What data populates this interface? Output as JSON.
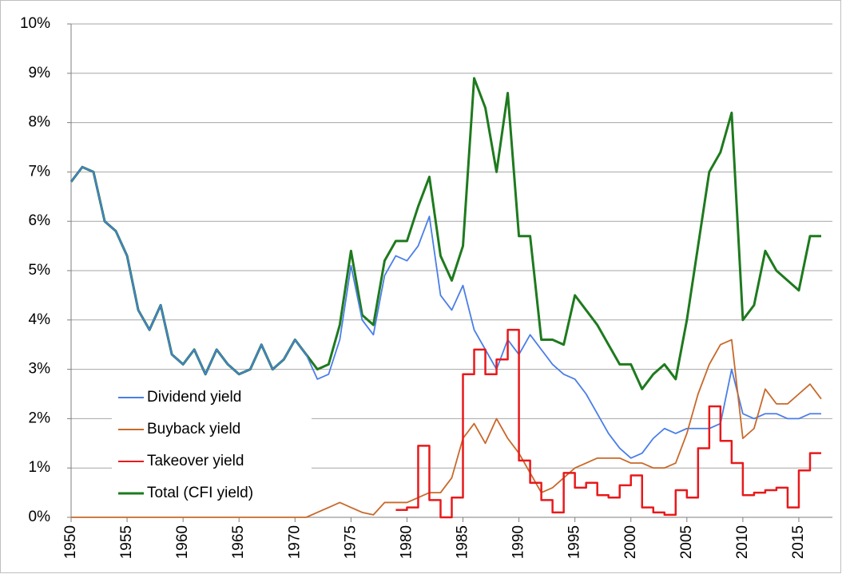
{
  "chart_data": {
    "type": "line",
    "x": [
      1950,
      1951,
      1952,
      1953,
      1954,
      1955,
      1956,
      1957,
      1958,
      1959,
      1960,
      1961,
      1962,
      1963,
      1964,
      1965,
      1966,
      1967,
      1968,
      1969,
      1970,
      1971,
      1972,
      1973,
      1974,
      1975,
      1976,
      1977,
      1978,
      1979,
      1980,
      1981,
      1982,
      1983,
      1984,
      1985,
      1986,
      1987,
      1988,
      1989,
      1990,
      1991,
      1992,
      1993,
      1994,
      1995,
      1996,
      1997,
      1998,
      1999,
      2000,
      2001,
      2002,
      2003,
      2004,
      2005,
      2006,
      2007,
      2008,
      2009,
      2010,
      2011,
      2012,
      2013,
      2014,
      2015,
      2016,
      2017
    ],
    "series": [
      {
        "name": "Dividend yield",
        "color": "#4a7ee8",
        "values": [
          6.8,
          7.1,
          7.0,
          6.0,
          5.8,
          5.3,
          4.2,
          3.8,
          4.3,
          3.3,
          3.1,
          3.4,
          2.9,
          3.4,
          3.1,
          2.9,
          3.0,
          3.5,
          3.0,
          3.2,
          3.6,
          3.3,
          2.8,
          2.9,
          3.6,
          5.1,
          4.0,
          3.7,
          4.9,
          5.3,
          5.2,
          5.5,
          6.1,
          4.5,
          4.2,
          4.7,
          3.8,
          3.4,
          3.0,
          3.6,
          3.3,
          3.7,
          3.4,
          3.1,
          2.9,
          2.8,
          2.5,
          2.1,
          1.7,
          1.4,
          1.2,
          1.3,
          1.6,
          1.8,
          1.7,
          1.8,
          1.8,
          1.8,
          1.9,
          3.0,
          2.1,
          2.0,
          2.1,
          2.1,
          2.0,
          2.0,
          2.1,
          2.1
        ]
      },
      {
        "name": "Buyback yield",
        "color": "#c8692a",
        "values": [
          0,
          0,
          0,
          0,
          0,
          0,
          0,
          0,
          0,
          0,
          0,
          0,
          0,
          0,
          0,
          0,
          0,
          0,
          0,
          0,
          0,
          0,
          0.1,
          0.2,
          0.3,
          0.2,
          0.1,
          0.05,
          0.3,
          0.3,
          0.3,
          0.4,
          0.5,
          0.5,
          0.8,
          1.6,
          1.9,
          1.5,
          2.0,
          1.6,
          1.3,
          0.9,
          0.5,
          0.6,
          0.8,
          1.0,
          1.1,
          1.2,
          1.2,
          1.2,
          1.1,
          1.1,
          1.0,
          1.0,
          1.1,
          1.7,
          2.5,
          3.1,
          3.5,
          3.6,
          1.6,
          1.8,
          2.6,
          2.3,
          2.3,
          2.5,
          2.7,
          2.4
        ]
      },
      {
        "name": "Takeover yield",
        "color": "#e8191b",
        "step": true,
        "values": [
          null,
          null,
          null,
          null,
          null,
          null,
          null,
          null,
          null,
          null,
          null,
          null,
          null,
          null,
          null,
          null,
          null,
          null,
          null,
          null,
          null,
          null,
          null,
          null,
          null,
          null,
          null,
          null,
          null,
          0.15,
          0.2,
          1.45,
          0.35,
          0.0,
          0.4,
          2.9,
          3.4,
          2.9,
          3.2,
          3.8,
          1.15,
          0.7,
          0.35,
          0.1,
          0.9,
          0.6,
          0.7,
          0.45,
          0.4,
          0.65,
          0.85,
          0.2,
          0.1,
          0.05,
          0.55,
          0.4,
          1.4,
          2.25,
          1.55,
          1.1,
          0.45,
          0.5,
          0.55,
          0.6,
          0.2,
          0.95,
          1.3,
          1.3
        ]
      },
      {
        "name": "Total (CFI yield)",
        "color": "#1e7a1e",
        "values": [
          6.8,
          7.1,
          7.0,
          6.0,
          5.8,
          5.3,
          4.2,
          3.8,
          4.3,
          3.3,
          3.1,
          3.4,
          2.9,
          3.4,
          3.1,
          2.9,
          3.0,
          3.5,
          3.0,
          3.2,
          3.6,
          3.3,
          3.0,
          3.1,
          3.9,
          5.4,
          4.1,
          3.9,
          5.2,
          5.6,
          5.6,
          6.3,
          6.9,
          5.3,
          4.8,
          5.5,
          8.9,
          8.3,
          7.0,
          8.6,
          5.7,
          5.7,
          3.6,
          3.6,
          3.5,
          4.5,
          4.2,
          3.9,
          3.5,
          3.1,
          3.1,
          2.6,
          2.9,
          3.1,
          2.8,
          4.0,
          5.5,
          7.0,
          7.4,
          8.2,
          4.0,
          4.3,
          5.4,
          5.0,
          4.8,
          4.6,
          5.7,
          5.7
        ]
      }
    ],
    "xlim": [
      1950,
      2018
    ],
    "xticks": [
      1950,
      1955,
      1960,
      1965,
      1970,
      1975,
      1980,
      1985,
      1990,
      1995,
      2000,
      2005,
      2010,
      2015
    ],
    "ylim": [
      0,
      10
    ],
    "yticks": [
      {
        "value": 0,
        "label": "0%"
      },
      {
        "value": 1,
        "label": "1%"
      },
      {
        "value": 2,
        "label": "2%"
      },
      {
        "value": 3,
        "label": "3%"
      },
      {
        "value": 4,
        "label": "4%"
      },
      {
        "value": 5,
        "label": "5%"
      },
      {
        "value": 6,
        "label": "6%"
      },
      {
        "value": 7,
        "label": "7%"
      },
      {
        "value": 8,
        "label": "8%"
      },
      {
        "value": 9,
        "label": "9%"
      },
      {
        "value": 10,
        "label": "10%"
      }
    ],
    "grid": true,
    "legend": "left"
  }
}
